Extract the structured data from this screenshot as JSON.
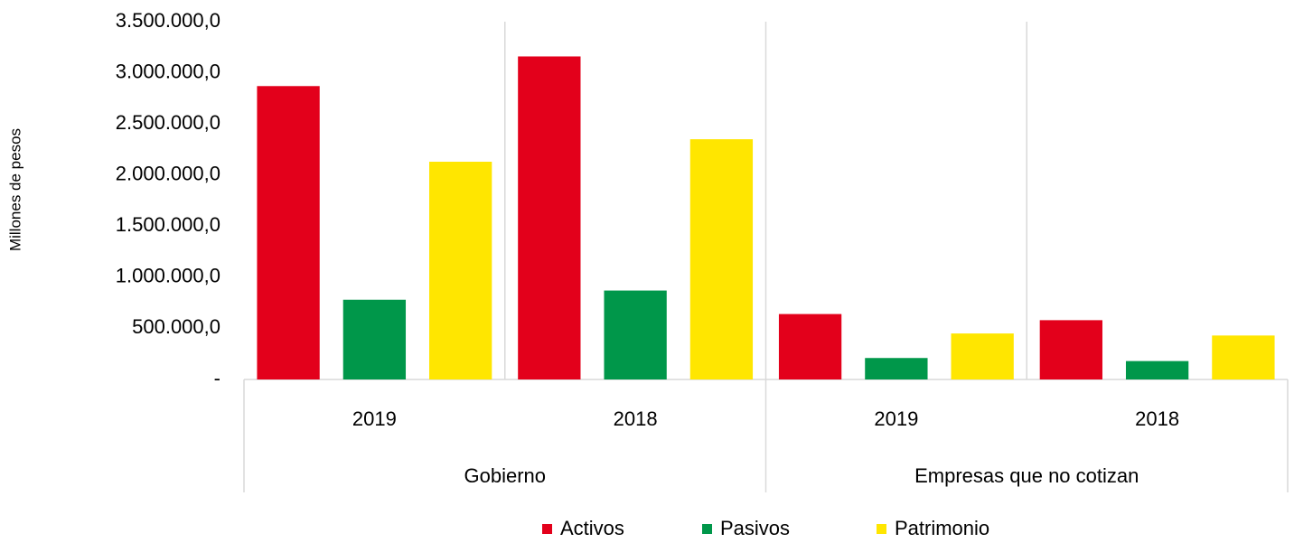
{
  "chart_data": {
    "type": "bar",
    "y_label": "Millones de pesos",
    "categories": [
      "2019",
      "2018",
      "2019",
      "2018"
    ],
    "groups": [
      "Gobierno",
      "Empresas que no cotizan"
    ],
    "series": [
      {
        "name": "Activos",
        "color": "#e3001b",
        "values": [
          2870000,
          3160000,
          640000,
          580000
        ]
      },
      {
        "name": "Pasivos",
        "color": "#00974a",
        "values": [
          780000,
          870000,
          210000,
          180000
        ]
      },
      {
        "name": "Patrimonio",
        "color": "#ffe600",
        "values": [
          2130000,
          2350000,
          450000,
          430000
        ]
      }
    ],
    "ylim": [
      0,
      3500000
    ],
    "yticks": [
      {
        "value": 0,
        "label": "-"
      },
      {
        "value": 500000,
        "label": "500.000,0"
      },
      {
        "value": 1000000,
        "label": "1.000.000,0"
      },
      {
        "value": 1500000,
        "label": "1.500.000,0"
      },
      {
        "value": 2000000,
        "label": "2.000.000,0"
      },
      {
        "value": 2500000,
        "label": "2.500.000,0"
      },
      {
        "value": 3000000,
        "label": "3.000.000,0"
      },
      {
        "value": 3500000,
        "label": "3.500.000,0"
      }
    ],
    "legend": "bottom"
  }
}
